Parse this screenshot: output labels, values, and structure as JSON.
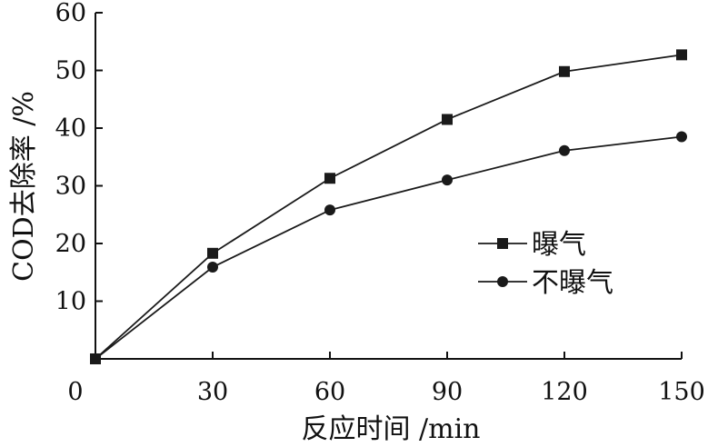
{
  "chart_data": {
    "type": "line",
    "x": [
      0,
      30,
      60,
      90,
      120,
      150
    ],
    "xlim": [
      0,
      150
    ],
    "ylim": [
      0,
      60
    ],
    "x_ticks": [
      "0",
      "30",
      "60",
      "90",
      "120",
      "150"
    ],
    "y_ticks": [
      "10",
      "20",
      "30",
      "40",
      "50",
      "60"
    ],
    "xlabel": "反应时间 /min",
    "ylabel": "COD去除率 /%",
    "grid": false,
    "legend_position": "right",
    "series": [
      {
        "name": "曝气",
        "marker": "square",
        "color": "#1a1a1a",
        "values": [
          0,
          18.3,
          31.3,
          41.5,
          49.8,
          52.7
        ]
      },
      {
        "name": "不曝气",
        "marker": "circle",
        "color": "#1a1a1a",
        "values": [
          0,
          15.9,
          25.8,
          31.0,
          36.1,
          38.5
        ]
      }
    ]
  }
}
